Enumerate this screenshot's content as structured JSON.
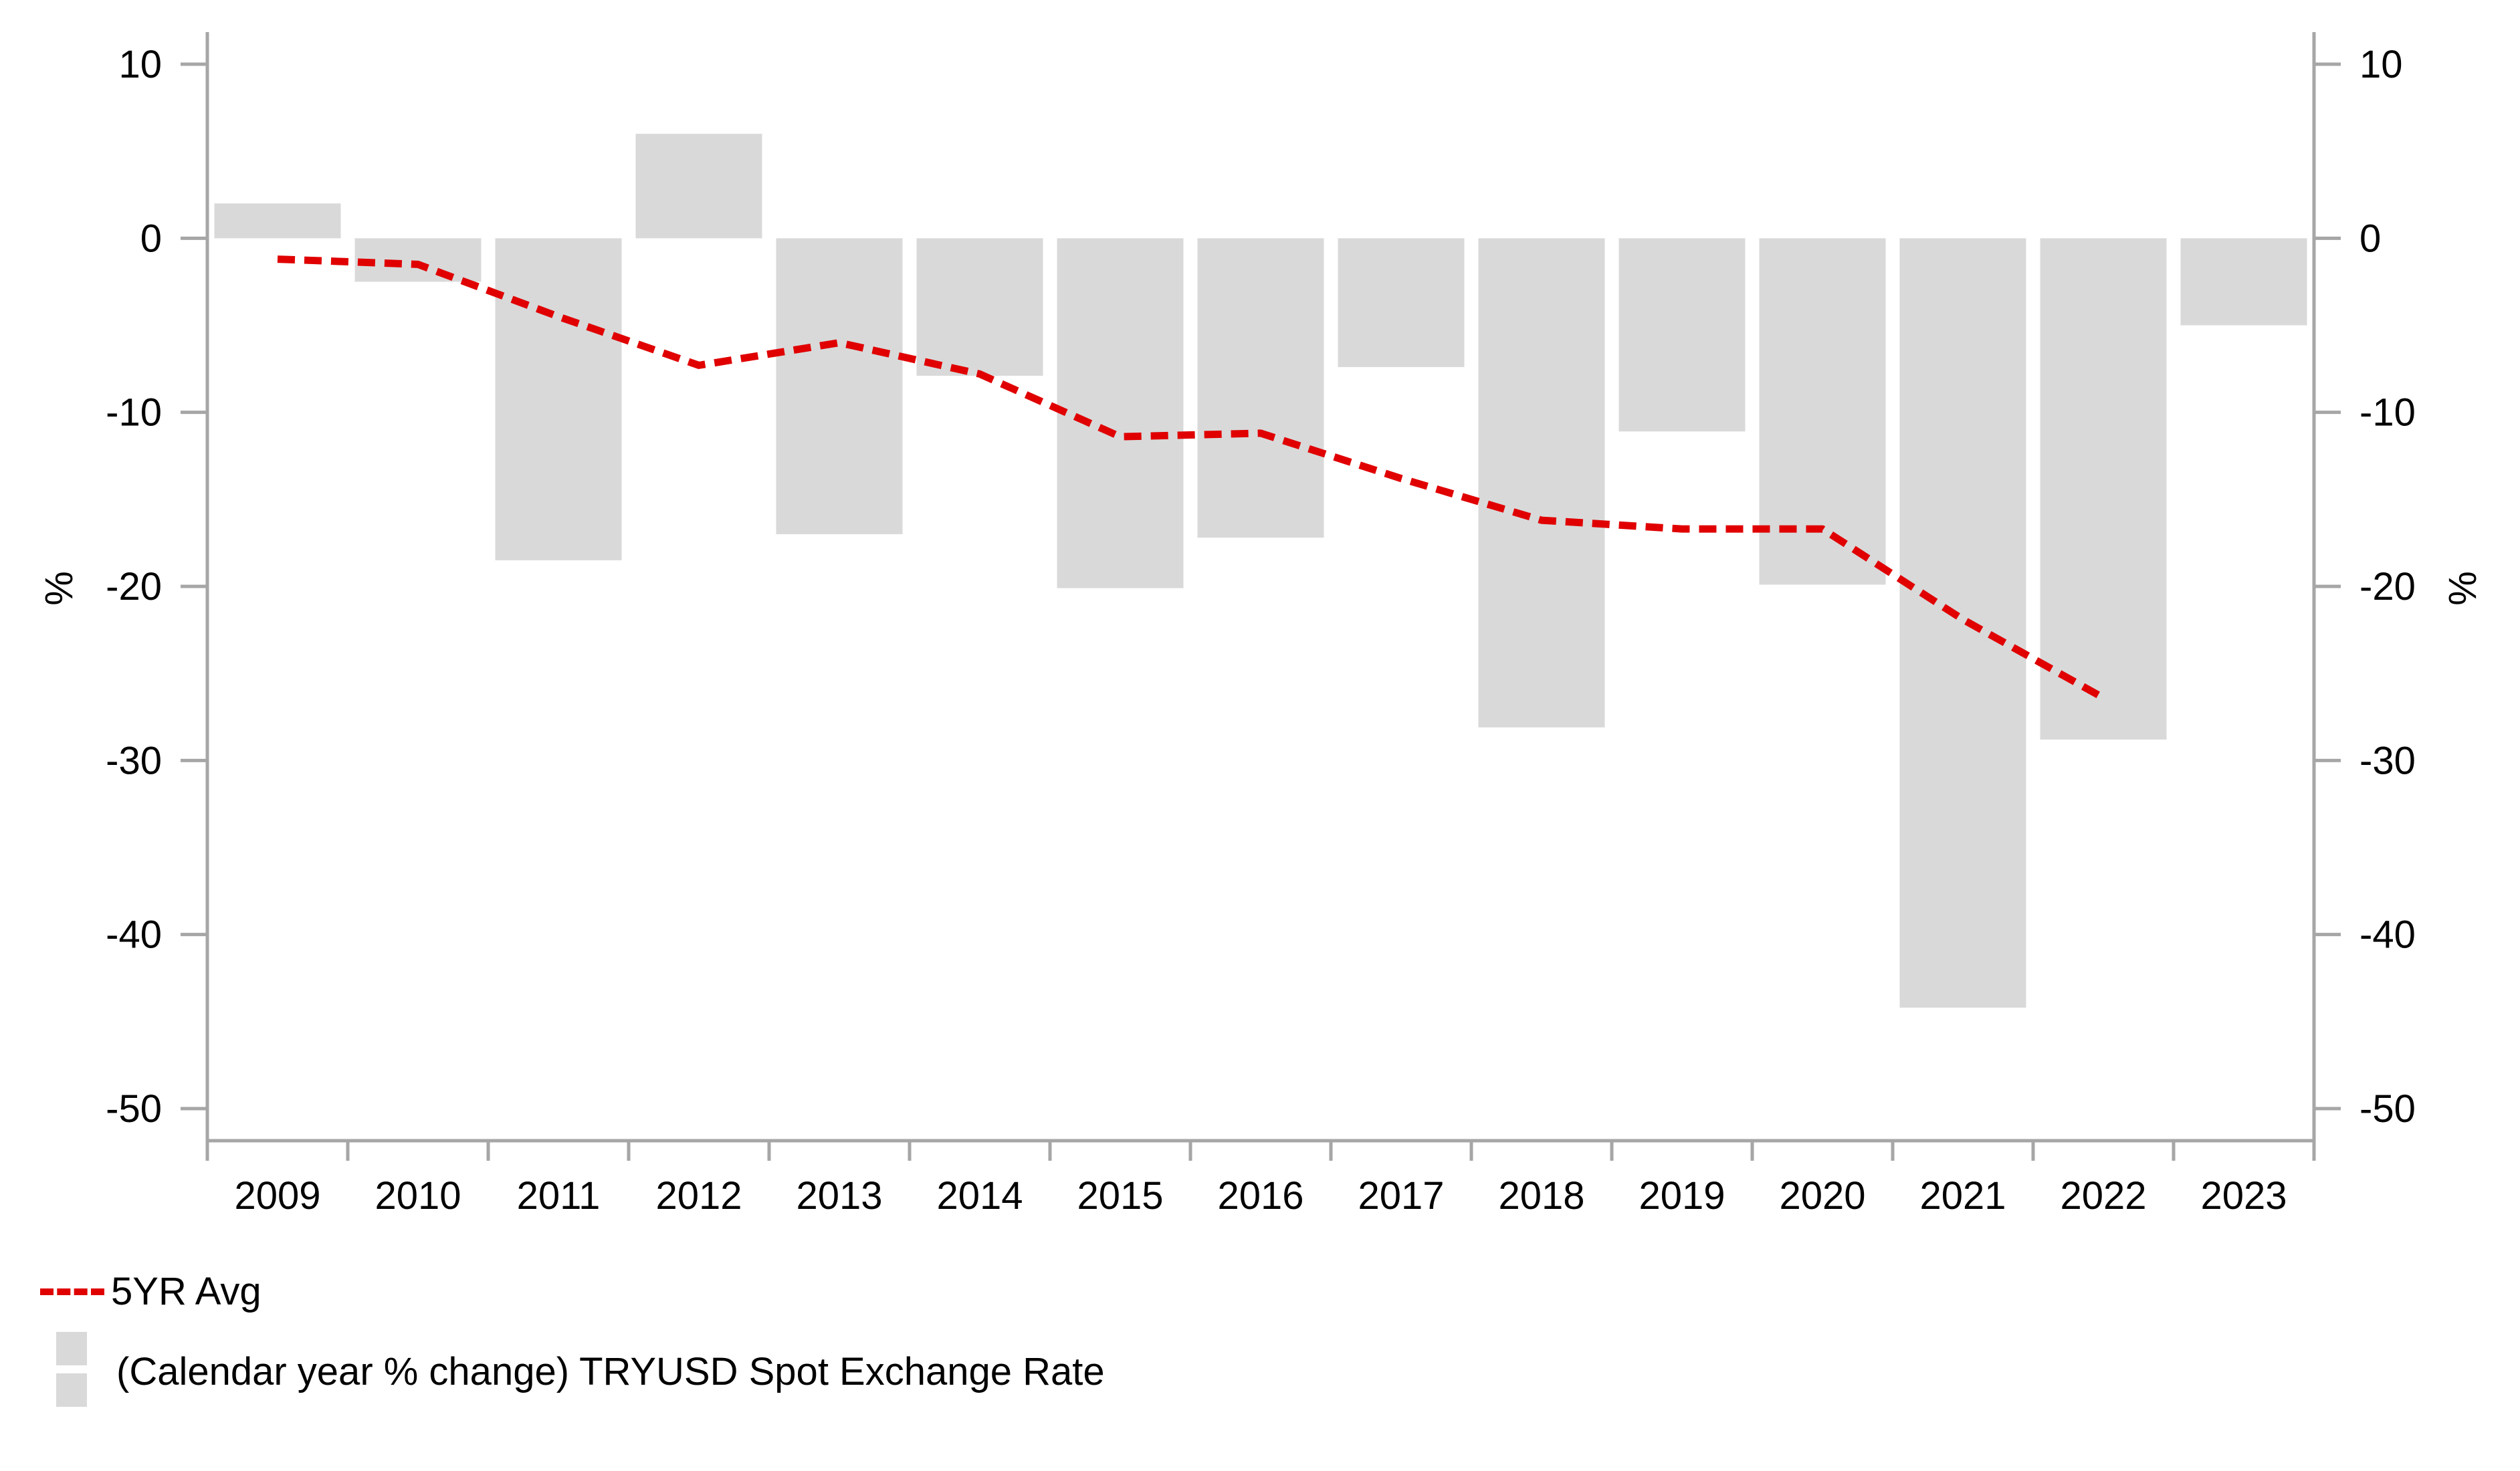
{
  "chart_data": {
    "type": "bar",
    "title": "",
    "xlabel": "",
    "ylabel": "%",
    "ylabel_right": "%",
    "ylim": [
      -52,
      12
    ],
    "yticks": [
      10,
      0,
      -10,
      -20,
      -30,
      -40,
      -50
    ],
    "ytick_labels": [
      "10",
      "0",
      "-10",
      "-20",
      "-30",
      "-40",
      "-50"
    ],
    "grid": false,
    "categories": [
      "2009",
      "2010",
      "2011",
      "2012",
      "2013",
      "2014",
      "2015",
      "2016",
      "2017",
      "2018",
      "2019",
      "2020",
      "2021",
      "2022",
      "2023"
    ],
    "series": [
      {
        "name": "(Calendar year % change) TRYUSD Spot Exchange Rate",
        "type": "bar",
        "color": "#d9d9d9",
        "values": [
          2.0,
          -2.5,
          -18.5,
          6.0,
          -17.0,
          -7.9,
          -20.1,
          -17.2,
          -7.4,
          -28.1,
          -11.1,
          -19.9,
          -44.2,
          -28.8,
          -5.0
        ]
      },
      {
        "name": "5YR Avg",
        "type": "line",
        "style": "dashed",
        "color": "#e00000",
        "values": [
          -1.2,
          -1.5,
          -4.5,
          -7.3,
          -6.0,
          -7.8,
          -11.4,
          -11.2,
          -13.8,
          -16.2,
          -16.7,
          -16.7,
          -21.9,
          -26.4,
          null
        ]
      }
    ],
    "legend_position": "bottom-left"
  },
  "legend": {
    "line_label": "5YR Avg",
    "bar_label": "(Calendar year % change) TRYUSD Spot Exchange Rate"
  }
}
